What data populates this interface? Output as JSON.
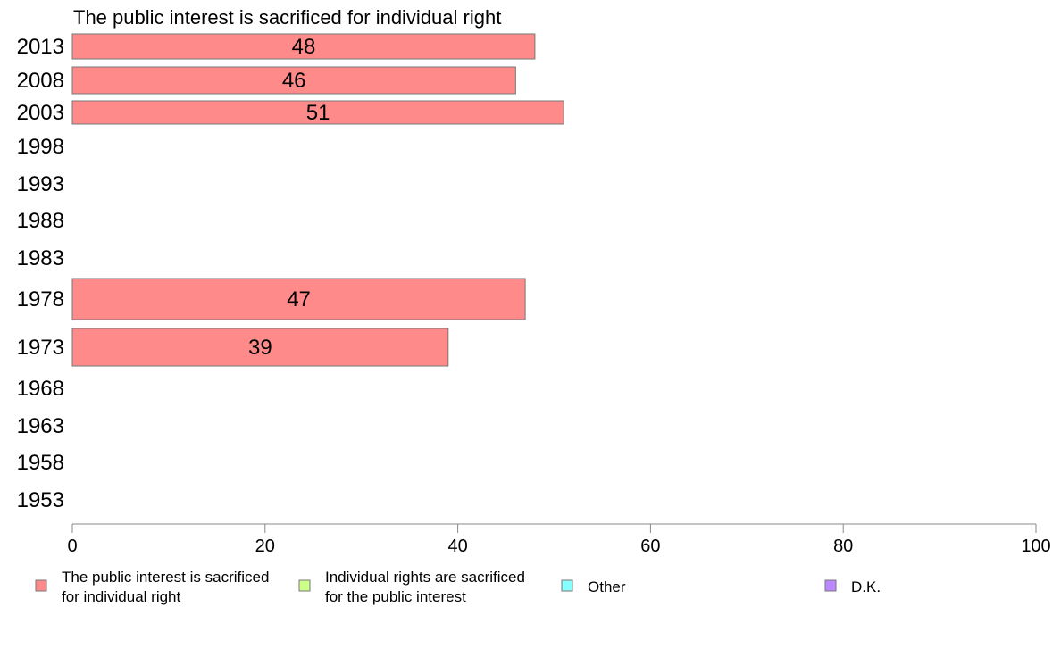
{
  "chart_data": {
    "type": "bar",
    "orientation": "horizontal",
    "title": "The public interest is sacrificed for individual right",
    "categories": [
      "2013",
      "2008",
      "2003",
      "1998",
      "1993",
      "1988",
      "1983",
      "1978",
      "1973",
      "1968",
      "1963",
      "1958",
      "1953"
    ],
    "series": [
      {
        "name": "The public interest is sacrificed for individual right",
        "values": [
          48,
          46,
          51,
          null,
          null,
          null,
          null,
          47,
          39,
          null,
          null,
          null,
          null
        ],
        "color": "#ff8a8a"
      }
    ],
    "x_ticks": [
      "0",
      "20",
      "40",
      "60",
      "80",
      "100"
    ],
    "xlim": [
      0,
      100
    ],
    "grid": false,
    "legend": {
      "placement": "bottom",
      "items": [
        {
          "lines": [
            "The public interest is sacrificed",
            "for individual right"
          ],
          "color": "#ff8a8a"
        },
        {
          "lines": [
            "Individual rights are sacrificed",
            "for the public interest"
          ],
          "color": "#ccff88"
        },
        {
          "lines": [
            "Other"
          ],
          "color": "#88ffff"
        },
        {
          "lines": [
            "D.K."
          ],
          "color": "#bb88ff"
        }
      ]
    }
  }
}
